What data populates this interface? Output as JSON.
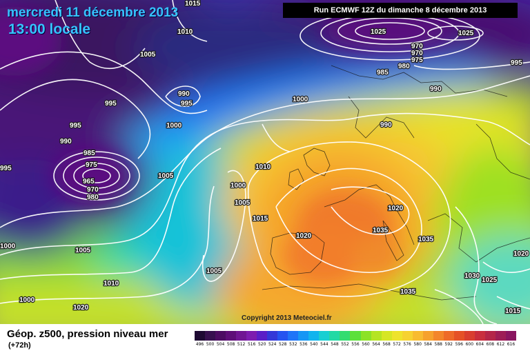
{
  "header": {
    "date": "mercredi 11 décembre 2013",
    "local_time": "13:00 locale",
    "run_info": "Run ECMWF 12Z du dimanche 8 décembre 2013"
  },
  "footer": {
    "product": "Géop. z500, pression niveau mer",
    "lead_time": "(+72h)",
    "copyright": "Copyright 2013 Meteociel.fr"
  },
  "legend": {
    "ticks": [
      "496",
      "500",
      "504",
      "508",
      "512",
      "516",
      "520",
      "524",
      "528",
      "532",
      "536",
      "540",
      "544",
      "548",
      "552",
      "556",
      "560",
      "564",
      "568",
      "572",
      "576",
      "580",
      "584",
      "588",
      "592",
      "596",
      "600",
      "604",
      "608",
      "612",
      "616"
    ],
    "colors": [
      "#1e0a33",
      "#37104f",
      "#4c0c62",
      "#5e0e78",
      "#701593",
      "#7d1caf",
      "#5a1fc7",
      "#3438d8",
      "#2554f0",
      "#1f74f8",
      "#1696f5",
      "#10b4ee",
      "#17cfd2",
      "#22d9a4",
      "#34dc70",
      "#5ce03a",
      "#8ce226",
      "#b5e422",
      "#d6e625",
      "#eee32c",
      "#f6d231",
      "#f8bb30",
      "#f6a12c",
      "#f3852a",
      "#ee6a28",
      "#e55126",
      "#d93e2f",
      "#c92e3d",
      "#b42548",
      "#9e1d55",
      "#8a1660"
    ]
  },
  "isobar_labels": [
    "1015",
    "1010",
    "1005",
    "995",
    "995",
    "990",
    "985",
    "975",
    "965",
    "970",
    "980",
    "995",
    "990",
    "995",
    "1000",
    "1005",
    "1000",
    "1010",
    "1005",
    "1000",
    "1005",
    "1015",
    "1005",
    "1010",
    "1000",
    "1020",
    "1020",
    "1025",
    "1025",
    "970",
    "970",
    "975",
    "980",
    "985",
    "990",
    "995",
    "1000",
    "990",
    "1020",
    "1035",
    "1035",
    "1035",
    "1030",
    "1025",
    "1020",
    "1015",
    "1005"
  ]
}
